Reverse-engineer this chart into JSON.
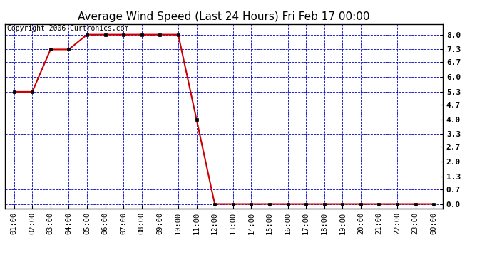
{
  "title": "Average Wind Speed (Last 24 Hours) Fri Feb 17 00:00",
  "copyright_text": "Copyright 2006 Curtronics.com",
  "x_labels": [
    "01:00",
    "02:00",
    "03:00",
    "04:00",
    "05:00",
    "06:00",
    "07:00",
    "08:00",
    "09:00",
    "10:00",
    "11:00",
    "12:00",
    "13:00",
    "14:00",
    "15:00",
    "16:00",
    "17:00",
    "18:00",
    "19:00",
    "20:00",
    "21:00",
    "22:00",
    "23:00",
    "00:00"
  ],
  "x_values": [
    1,
    2,
    3,
    4,
    5,
    6,
    7,
    8,
    9,
    10,
    11,
    12,
    13,
    14,
    15,
    16,
    17,
    18,
    19,
    20,
    21,
    22,
    23,
    24
  ],
  "y_values": [
    5.3,
    5.3,
    7.3,
    7.3,
    8.0,
    8.0,
    8.0,
    8.0,
    8.0,
    8.0,
    4.0,
    0.0,
    0.0,
    0.0,
    0.0,
    0.0,
    0.0,
    0.0,
    0.0,
    0.0,
    0.0,
    0.0,
    0.0,
    0.0
  ],
  "y_ticks": [
    0.0,
    0.7,
    1.3,
    2.0,
    2.7,
    3.3,
    4.0,
    4.7,
    5.3,
    6.0,
    6.7,
    7.3,
    8.0
  ],
  "ylim": [
    -0.2,
    8.5
  ],
  "xlim": [
    0.5,
    24.5
  ],
  "line_color": "#cc0000",
  "marker_color": "#000000",
  "marker_face_color": "#cc0000",
  "bg_color": "#ffffff",
  "plot_bg_color": "#ffffff",
  "grid_color": "#0000bb",
  "border_color": "#000000",
  "title_fontsize": 11,
  "copyright_fontsize": 7,
  "tick_label_fontsize": 7.5,
  "ytick_label_fontsize": 8
}
